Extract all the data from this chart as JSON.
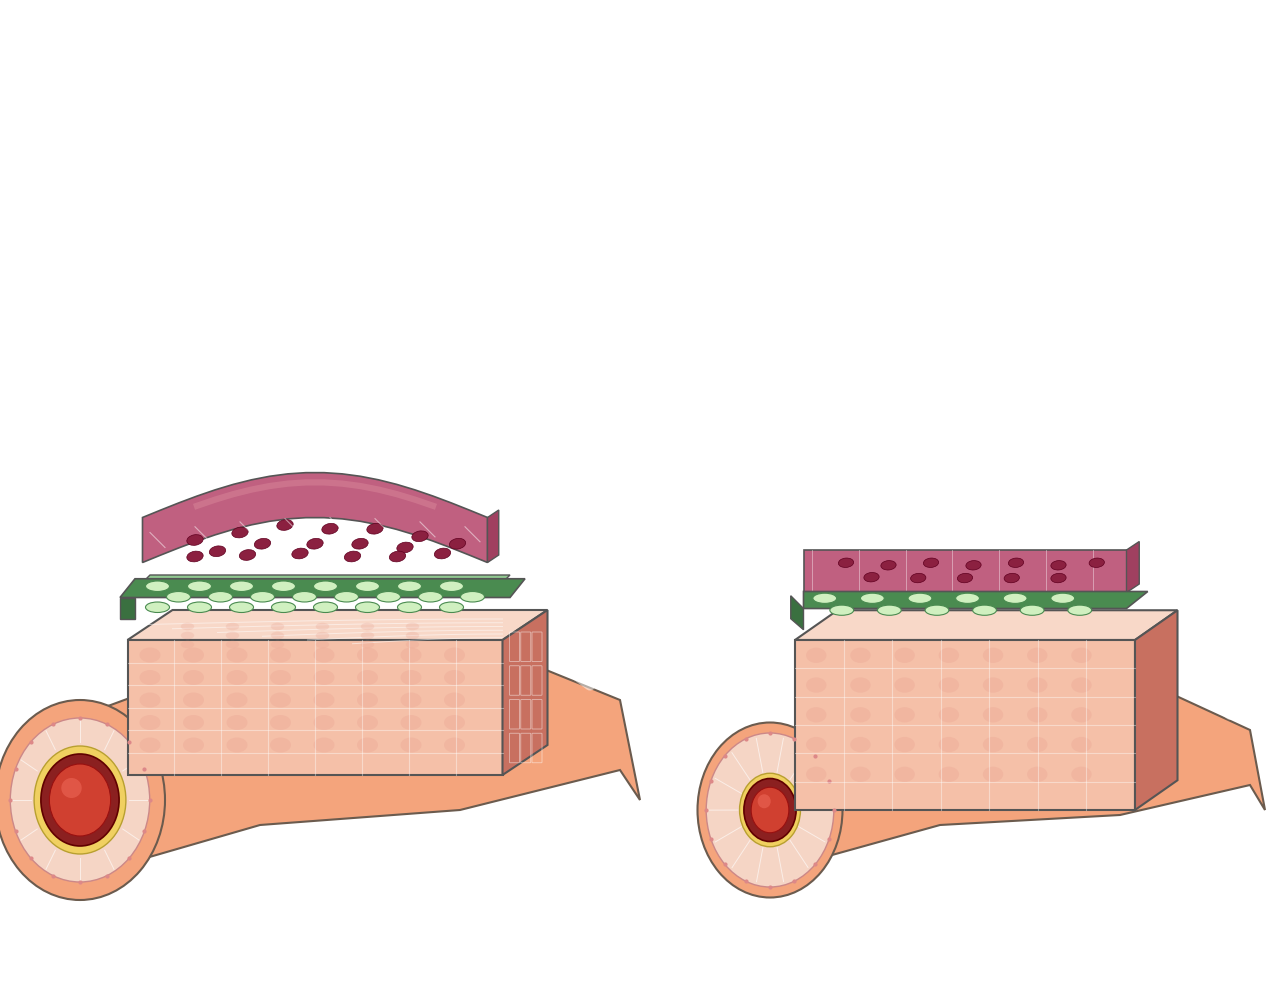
{
  "bg_color": "#ffffff",
  "vessel_outer_color": "#F4A47C",
  "vessel_outer_stroke": "#6B5B4E",
  "vessel_inner_tissue_color": "#F9C5B0",
  "vessel_wall_fibrous_color": "#F5D5C5",
  "vessel_yellow_layer": "#F0D060",
  "vessel_dark_ring": "#8B2020",
  "vessel_lumen_color": "#D04030",
  "vessel_lumen_highlight": "#E86050",
  "muscle_pink": "#C06080",
  "muscle_light": "#E090A0",
  "muscle_dark_nucleus": "#8B2040",
  "connective_green_dark": "#4A8B50",
  "connective_green_light": "#90C890",
  "connective_green_fill": "#D0F0C0",
  "fat_pink": "#F5C0A8",
  "fat_pink_dark": "#E8A090",
  "fat_brick": "#C87060",
  "fat_light": "#F8D8C8",
  "white_fiber": "#FFFFFF",
  "outline_color": "#555555"
}
